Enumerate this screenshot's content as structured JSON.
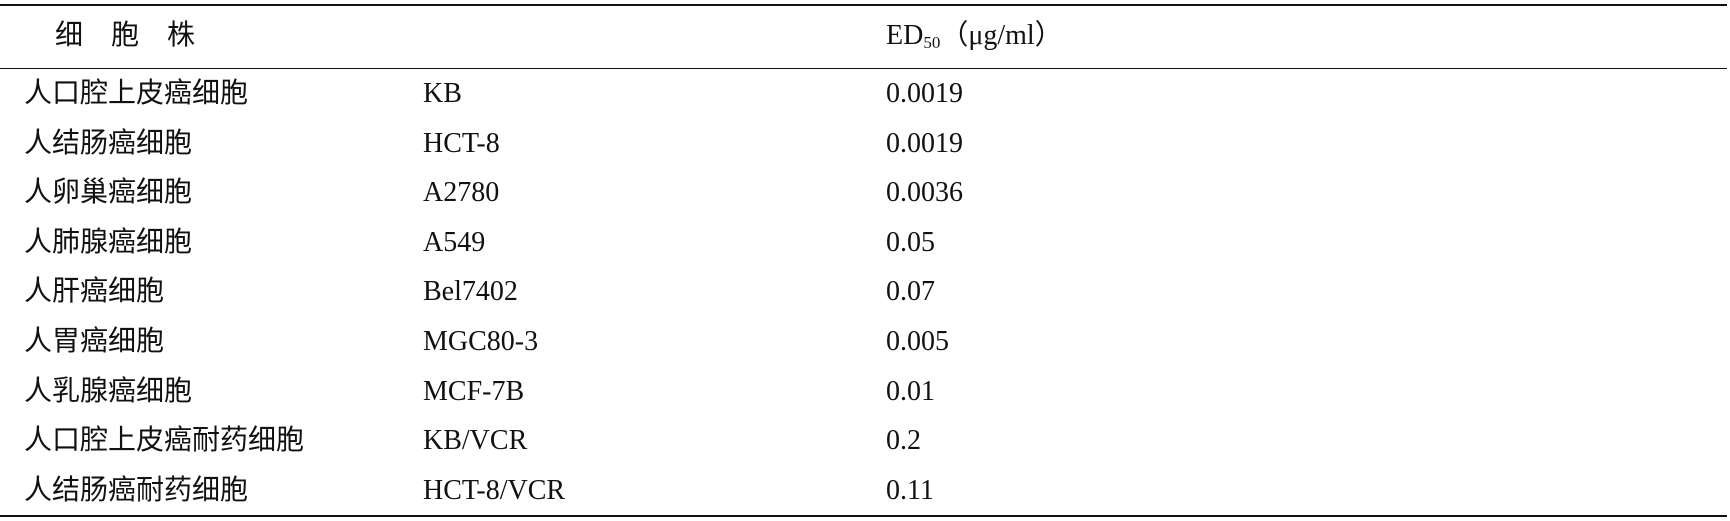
{
  "table": {
    "header": {
      "cell_line": "细　胞　株",
      "ed_prefix": "ED",
      "ed_sub": "50",
      "ed_unit": "（μg/ml）"
    },
    "rows": [
      [
        "人口腔上皮癌细胞",
        "KB",
        "0.0019"
      ],
      [
        "人结肠癌细胞",
        "HCT-8",
        "0.0019"
      ],
      [
        "人卵巢癌细胞",
        "A2780",
        "0.0036"
      ],
      [
        "人肺腺癌细胞",
        "A549",
        "0.05"
      ],
      [
        "人肝癌细胞",
        "Bel7402",
        "0.07"
      ],
      [
        "人胃癌细胞",
        "MGC80-3",
        "0.005"
      ],
      [
        "人乳腺癌细胞",
        "MCF-7B",
        "0.01"
      ],
      [
        "人口腔上皮癌耐药细胞",
        "KB/VCR",
        "0.2"
      ],
      [
        "人结肠癌耐药细胞",
        "HCT-8/VCR",
        "0.11"
      ]
    ]
  }
}
